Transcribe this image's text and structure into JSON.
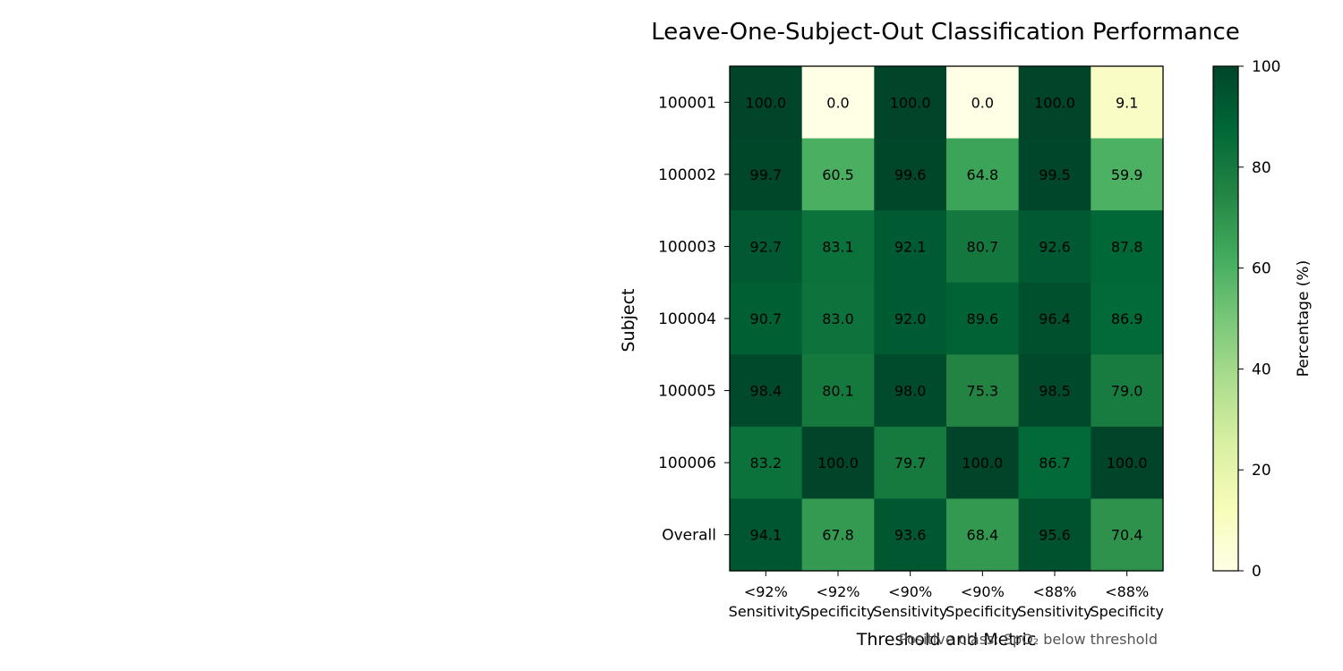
{
  "chart_data": {
    "type": "heatmap",
    "title": "Leave-One-Subject-Out Classification Performance",
    "xlabel": "Threshold and Metric",
    "ylabel": "Subject",
    "footnote": "Positive class: SpO₂ below threshold",
    "x_categories": [
      "<92%\nSensitivity",
      "<92%\nSpecificity",
      "<90%\nSensitivity",
      "<90%\nSpecificity",
      "<88%\nSensitivity",
      "<88%\nSpecificity"
    ],
    "y_categories": [
      "100001",
      "100002",
      "100003",
      "100004",
      "100005",
      "100006",
      "Overall"
    ],
    "values": [
      [
        100.0,
        0.0,
        100.0,
        0.0,
        100.0,
        9.1
      ],
      [
        99.7,
        60.5,
        99.6,
        64.8,
        99.5,
        59.9
      ],
      [
        92.7,
        83.1,
        92.1,
        80.7,
        92.6,
        87.8
      ],
      [
        90.7,
        83.0,
        92.0,
        89.6,
        96.4,
        86.9
      ],
      [
        98.4,
        80.1,
        98.0,
        75.3,
        98.5,
        79.0
      ],
      [
        83.2,
        100.0,
        79.7,
        100.0,
        86.7,
        100.0
      ],
      [
        94.1,
        67.8,
        93.6,
        68.4,
        95.6,
        70.4
      ]
    ],
    "colormap": "YlGn",
    "vmin": 0,
    "vmax": 100,
    "colorbar": {
      "label": "Percentage (%)",
      "ticks": [
        0,
        20,
        40,
        60,
        80,
        100
      ]
    }
  }
}
